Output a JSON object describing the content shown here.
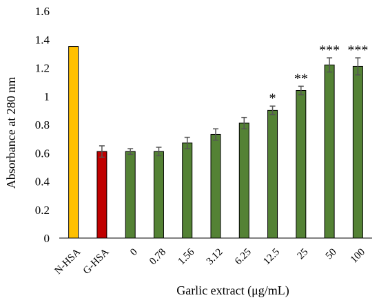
{
  "chart_data": {
    "type": "bar",
    "title": "",
    "xlabel": "Garlic extract (μg/mL)",
    "ylabel": "Absorbance at 280 nm",
    "ylim": [
      0,
      1.6
    ],
    "yticks": [
      "0",
      "0.2",
      "0.4",
      "0.6",
      "0.8",
      "1",
      "1.2",
      "1.4",
      "1.6"
    ],
    "grid": false,
    "legend": "none",
    "categories": [
      "N-HSA",
      "G-HSA",
      "0",
      "0.78",
      "1.56",
      "3.12",
      "6.25",
      "12.5",
      "25",
      "50",
      "100"
    ],
    "values": [
      1.35,
      0.61,
      0.61,
      0.61,
      0.67,
      0.73,
      0.81,
      0.9,
      1.04,
      1.22,
      1.21
    ],
    "errors": [
      0,
      0.04,
      0.02,
      0.03,
      0.04,
      0.04,
      0.04,
      0.03,
      0.03,
      0.05,
      0.06
    ],
    "significance": [
      "",
      "",
      "",
      "",
      "",
      "",
      "",
      "*",
      "**",
      "***",
      "***"
    ],
    "colors": [
      "#FFC000",
      "#C00000",
      "#548235",
      "#548235",
      "#548235",
      "#548235",
      "#548235",
      "#548235",
      "#548235",
      "#548235",
      "#548235"
    ]
  }
}
